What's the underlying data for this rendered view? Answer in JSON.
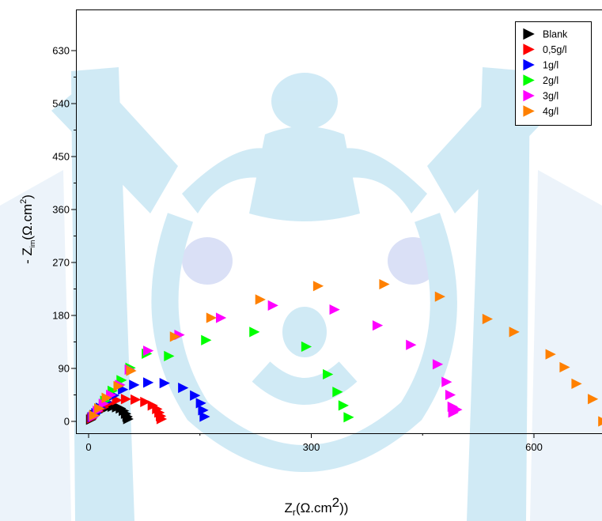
{
  "chart_data": {
    "type": "scatter",
    "title": "",
    "xlabel": {
      "main": "Z",
      "sub": "r",
      "paren": "(Ω.cm",
      "sup": "2",
      "close": "))"
    },
    "ylabel": {
      "prefix": "- Z",
      "sub": "im",
      "paren": "(Ω.cm",
      "sup": "2",
      "close": ")"
    },
    "xlim": [
      -10,
      690
    ],
    "ylim": [
      -10,
      700
    ],
    "xticks": [
      0,
      300,
      600
    ],
    "xtick_labels": [
      "0",
      "300",
      "600"
    ],
    "yticks": [
      0,
      90,
      180,
      270,
      360,
      450,
      540,
      630
    ],
    "ytick_labels": [
      "0",
      "90",
      "180",
      "270",
      "360",
      "450",
      "540",
      "630"
    ],
    "grid": false,
    "legend_position": "top-right",
    "marker": "right-triangle",
    "series": [
      {
        "name": "Blank",
        "color": "#000000",
        "points": [
          [
            3,
            3
          ],
          [
            5,
            7
          ],
          [
            8,
            11
          ],
          [
            12,
            15
          ],
          [
            16,
            19
          ],
          [
            21,
            22
          ],
          [
            26,
            24
          ],
          [
            32,
            25
          ],
          [
            38,
            24
          ],
          [
            43,
            22
          ],
          [
            47,
            18
          ],
          [
            50,
            13
          ],
          [
            52,
            8
          ],
          [
            53,
            4
          ]
        ]
      },
      {
        "name": "0,5g/l",
        "color": "#ff0000",
        "points": [
          [
            4,
            5
          ],
          [
            8,
            10
          ],
          [
            13,
            17
          ],
          [
            20,
            24
          ],
          [
            28,
            31
          ],
          [
            38,
            36
          ],
          [
            50,
            38
          ],
          [
            63,
            37
          ],
          [
            76,
            33
          ],
          [
            86,
            27
          ],
          [
            92,
            21
          ],
          [
            95,
            15
          ],
          [
            97,
            9
          ],
          [
            98,
            4
          ]
        ]
      },
      {
        "name": "1g/l",
        "color": "#0000ff",
        "points": [
          [
            5,
            7
          ],
          [
            10,
            14
          ],
          [
            16,
            23
          ],
          [
            24,
            33
          ],
          [
            34,
            44
          ],
          [
            46,
            54
          ],
          [
            61,
            62
          ],
          [
            80,
            66
          ],
          [
            102,
            65
          ],
          [
            127,
            57
          ],
          [
            143,
            44
          ],
          [
            151,
            31
          ],
          [
            154,
            19
          ],
          [
            156,
            8
          ]
        ]
      },
      {
        "name": "2g/l",
        "color": "#00ff00",
        "points": [
          [
            7,
            10
          ],
          [
            14,
            22
          ],
          [
            22,
            35
          ],
          [
            32,
            52
          ],
          [
            44,
            70
          ],
          [
            56,
            91
          ],
          [
            78,
            115
          ],
          [
            108,
            111
          ],
          [
            158,
            138
          ],
          [
            223,
            152
          ],
          [
            293,
            127
          ],
          [
            322,
            80
          ],
          [
            335,
            50
          ],
          [
            343,
            27
          ],
          [
            350,
            7
          ]
        ]
      },
      {
        "name": "3g/l",
        "color": "#ff00ff",
        "points": [
          [
            6,
            8
          ],
          [
            12,
            18
          ],
          [
            20,
            30
          ],
          [
            30,
            45
          ],
          [
            42,
            62
          ],
          [
            55,
            88
          ],
          [
            80,
            120
          ],
          [
            122,
            147
          ],
          [
            178,
            176
          ],
          [
            248,
            197
          ],
          [
            331,
            190
          ],
          [
            389,
            163
          ],
          [
            434,
            130
          ],
          [
            470,
            97
          ],
          [
            482,
            67
          ],
          [
            487,
            45
          ],
          [
            490,
            25
          ],
          [
            491,
            15
          ],
          [
            496,
            20
          ]
        ]
      },
      {
        "name": "4g/l",
        "color": "#ff8000",
        "points": [
          [
            7,
            10
          ],
          [
            14,
            22
          ],
          [
            24,
            40
          ],
          [
            40,
            60
          ],
          [
            57,
            86
          ],
          [
            116,
            144
          ],
          [
            165,
            176
          ],
          [
            231,
            207
          ],
          [
            309,
            230
          ],
          [
            398,
            233
          ],
          [
            473,
            212
          ],
          [
            537,
            174
          ],
          [
            573,
            152
          ],
          [
            622,
            114
          ],
          [
            641,
            92
          ],
          [
            657,
            64
          ],
          [
            679,
            38
          ],
          [
            693,
            0
          ]
        ]
      }
    ]
  }
}
